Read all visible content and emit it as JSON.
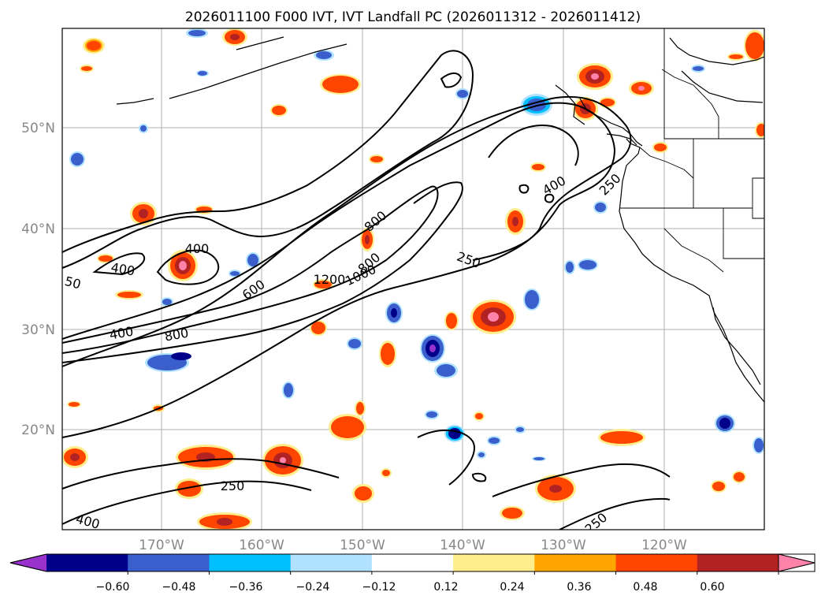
{
  "title": "2026011100 F000 IVT, IVT Landfall PC (2026011312 - 2026011412)",
  "axes": {
    "lat_labels": [
      "50°N",
      "40°N",
      "30°N",
      "20°N"
    ],
    "lon_labels": [
      "170°W",
      "160°W",
      "150°W",
      "140°W",
      "130°W",
      "120°W"
    ]
  },
  "colorbar": {
    "tick_labels": [
      "−0.60",
      "−0.48",
      "−0.36",
      "−0.24",
      "−0.12",
      "0.12",
      "0.24",
      "0.36",
      "0.48",
      "0.60"
    ],
    "colors": [
      "#9932CC",
      "#00008B",
      "#3A5FCD",
      "#00BFFF",
      "#B0E2FF",
      "#FFFFFF",
      "#FFEC8B",
      "#FFA500",
      "#FF4500",
      "#B22222",
      "#FF82AB"
    ]
  },
  "contours": {
    "labels": [
      "400",
      "250",
      "400",
      "400",
      "400",
      "50",
      "800",
      "600",
      "1200",
      "1000",
      "800",
      "400",
      "800",
      "250",
      "250",
      "250",
      "400",
      "50"
    ]
  }
}
